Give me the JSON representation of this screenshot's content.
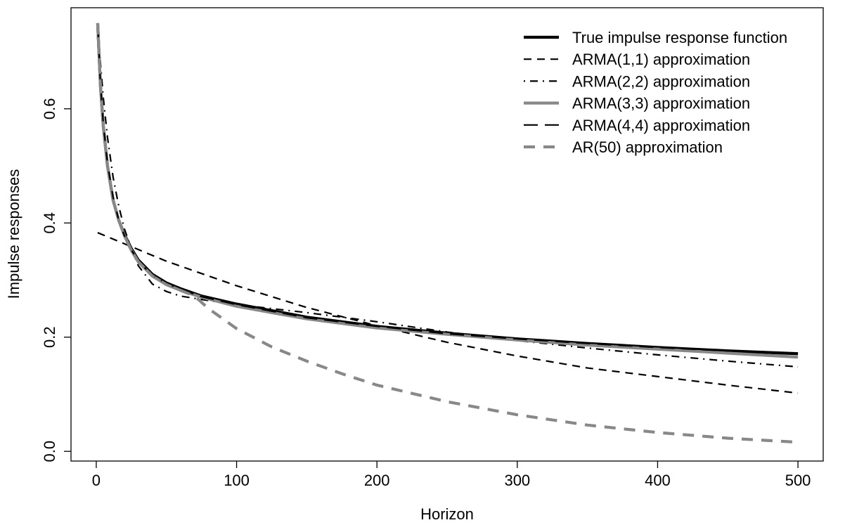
{
  "chart_data": {
    "type": "line",
    "title": "",
    "xlabel": "Horizon",
    "ylabel": "Impulse responses",
    "xlim": [
      -18,
      518
    ],
    "ylim": [
      -0.017,
      0.777
    ],
    "x_ticks": [
      0,
      100,
      200,
      300,
      400,
      500
    ],
    "x_tick_labels": [
      "0",
      "100",
      "200",
      "300",
      "400",
      "500"
    ],
    "y_ticks": [
      0.0,
      0.2,
      0.4,
      0.6
    ],
    "y_tick_labels": [
      "0.0",
      "0.2",
      "0.4",
      "0.6"
    ],
    "grid": false,
    "legend_position": "top-right",
    "series": [
      {
        "name": "True impulse response function",
        "color": "#000000",
        "style": "solid-thick",
        "x": [
          1,
          3,
          5,
          8,
          12,
          16,
          20,
          25,
          30,
          40,
          50,
          60,
          75,
          100,
          150,
          200,
          250,
          300,
          350,
          400,
          450,
          500
        ],
        "y": [
          0.75,
          0.64,
          0.57,
          0.5,
          0.44,
          0.405,
          0.38,
          0.355,
          0.335,
          0.31,
          0.295,
          0.285,
          0.272,
          0.258,
          0.235,
          0.219,
          0.207,
          0.197,
          0.189,
          0.182,
          0.176,
          0.171
        ]
      },
      {
        "name": "ARMA(1,1) approximation",
        "color": "#000000",
        "style": "dashed",
        "x": [
          1,
          50,
          100,
          150,
          200,
          250,
          300,
          350,
          400,
          450,
          500
        ],
        "y": [
          0.383,
          0.333,
          0.29,
          0.252,
          0.22,
          0.191,
          0.167,
          0.146,
          0.131,
          0.116,
          0.102
        ]
      },
      {
        "name": "ARMA(2,2) approximation",
        "color": "#000000",
        "style": "dotdash",
        "x": [
          1,
          3,
          5,
          8,
          12,
          16,
          20,
          25,
          30,
          40,
          50,
          60,
          75,
          100,
          150,
          200,
          250,
          300,
          350,
          400,
          450,
          500
        ],
        "y": [
          0.73,
          0.68,
          0.62,
          0.55,
          0.48,
          0.43,
          0.39,
          0.355,
          0.325,
          0.293,
          0.28,
          0.272,
          0.266,
          0.257,
          0.243,
          0.227,
          0.209,
          0.194,
          0.181,
          0.169,
          0.158,
          0.148
        ]
      },
      {
        "name": "ARMA(3,3) approximation",
        "color": "#888888",
        "style": "solid-thick",
        "x": [
          1,
          3,
          5,
          8,
          12,
          16,
          20,
          25,
          30,
          40,
          50,
          60,
          75,
          100,
          150,
          200,
          250,
          300,
          350,
          400,
          450,
          500
        ],
        "y": [
          0.75,
          0.64,
          0.57,
          0.5,
          0.44,
          0.405,
          0.378,
          0.352,
          0.332,
          0.307,
          0.292,
          0.282,
          0.27,
          0.254,
          0.232,
          0.216,
          0.205,
          0.195,
          0.186,
          0.179,
          0.172,
          0.165
        ]
      },
      {
        "name": "ARMA(4,4) approximation",
        "color": "#000000",
        "style": "longdash",
        "x": [
          1,
          3,
          5,
          8,
          12,
          16,
          20,
          25,
          30,
          40,
          50,
          60,
          75,
          100,
          150,
          200,
          250,
          300,
          350,
          400,
          450,
          500
        ],
        "y": [
          0.75,
          0.645,
          0.575,
          0.505,
          0.445,
          0.405,
          0.378,
          0.353,
          0.333,
          0.308,
          0.294,
          0.284,
          0.271,
          0.257,
          0.234,
          0.219,
          0.206,
          0.197,
          0.189,
          0.182,
          0.176,
          0.171
        ]
      },
      {
        "name": "AR(50) approximation",
        "color": "#888888",
        "style": "dashed-thick",
        "x": [
          1,
          3,
          5,
          8,
          12,
          16,
          20,
          25,
          30,
          40,
          50,
          60,
          70,
          80,
          100,
          125,
          150,
          175,
          200,
          250,
          300,
          350,
          400,
          450,
          500
        ],
        "y": [
          0.75,
          0.64,
          0.57,
          0.5,
          0.44,
          0.405,
          0.378,
          0.352,
          0.332,
          0.307,
          0.292,
          0.282,
          0.272,
          0.25,
          0.215,
          0.183,
          0.158,
          0.136,
          0.116,
          0.087,
          0.064,
          0.046,
          0.033,
          0.023,
          0.016
        ]
      }
    ]
  }
}
